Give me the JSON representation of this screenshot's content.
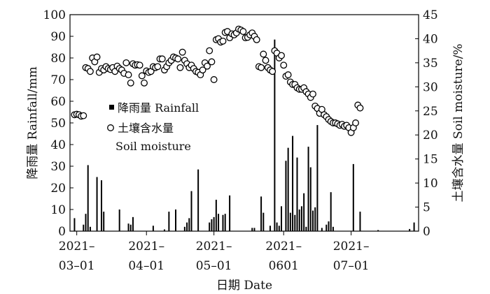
{
  "chart_data": {
    "type": "bar+scatter",
    "x_axis": {
      "label": "日期 Date",
      "ticks": [
        {
          "date": "2021-03-01",
          "label_top": "2021–",
          "label_bottom": "03–01"
        },
        {
          "date": "2021-04-01",
          "label_top": "2021–",
          "label_bottom": "04–01"
        },
        {
          "date": "2021-05-01",
          "label_top": "2021–",
          "label_bottom": "05–01"
        },
        {
          "date": "2021-06-01",
          "label_top": "2021–",
          "label_bottom": "0601"
        },
        {
          "date": "2021-07-01",
          "label_top": "2021–",
          "label_bottom": "07–01"
        }
      ],
      "range": [
        "2021-02-26",
        "2021-07-31"
      ]
    },
    "y_left": {
      "label": "降雨量 Rainfall/mm",
      "range": [
        0,
        100
      ],
      "ticks": [
        0,
        10,
        20,
        30,
        40,
        50,
        60,
        70,
        80,
        90,
        100
      ]
    },
    "y_right": {
      "label": "土壤含水量 Soil moisture/%",
      "range": [
        0,
        45
      ],
      "ticks": [
        0,
        5,
        10,
        15,
        20,
        25,
        30,
        35,
        40,
        45
      ]
    },
    "legend": {
      "placement": "middle-left",
      "entries": [
        {
          "series": "rainfall",
          "marker": "square",
          "text": "降雨量 Rainfall"
        },
        {
          "series": "soil_moisture",
          "marker": "circle",
          "text": "土壤含水量",
          "text2": "Soil moisture"
        }
      ]
    },
    "series": [
      {
        "id": "rainfall",
        "kind": "bar",
        "axis": "left",
        "points": [
          [
            "2021-02-28",
            6
          ],
          [
            "2021-03-04",
            3
          ],
          [
            "2021-03-05",
            8
          ],
          [
            "2021-03-06",
            30.5
          ],
          [
            "2021-03-07",
            2
          ],
          [
            "2021-03-10",
            25
          ],
          [
            "2021-03-12",
            23.5
          ],
          [
            "2021-03-13",
            9
          ],
          [
            "2021-03-20",
            10
          ],
          [
            "2021-03-24",
            3.5
          ],
          [
            "2021-03-25",
            3
          ],
          [
            "2021-03-26",
            6.5
          ],
          [
            "2021-04-04",
            2.5
          ],
          [
            "2021-04-09",
            0.8
          ],
          [
            "2021-04-11",
            9
          ],
          [
            "2021-04-14",
            10
          ],
          [
            "2021-04-18",
            2
          ],
          [
            "2021-04-19",
            4
          ],
          [
            "2021-04-20",
            6
          ],
          [
            "2021-04-21",
            18.5
          ],
          [
            "2021-04-24",
            28.5
          ],
          [
            "2021-04-29",
            4
          ],
          [
            "2021-04-30",
            5.5
          ],
          [
            "2021-05-01",
            6.5
          ],
          [
            "2021-05-02",
            14.5
          ],
          [
            "2021-05-03",
            8
          ],
          [
            "2021-05-05",
            7.5
          ],
          [
            "2021-05-06",
            8
          ],
          [
            "2021-05-08",
            16.5
          ],
          [
            "2021-05-18",
            1.5
          ],
          [
            "2021-05-19",
            1.5
          ],
          [
            "2021-05-22",
            16
          ],
          [
            "2021-05-23",
            8.5
          ],
          [
            "2021-05-26",
            2.5
          ],
          [
            "2021-05-28",
            88.5
          ],
          [
            "2021-05-29",
            4
          ],
          [
            "2021-05-30",
            2.5
          ],
          [
            "2021-05-31",
            11.5
          ],
          [
            "2021-06-02",
            32.5
          ],
          [
            "2021-06-03",
            38.5
          ],
          [
            "2021-06-04",
            8.5
          ],
          [
            "2021-06-05",
            44
          ],
          [
            "2021-06-06",
            7.5
          ],
          [
            "2021-06-07",
            34
          ],
          [
            "2021-06-08",
            10
          ],
          [
            "2021-06-09",
            11.5
          ],
          [
            "2021-06-10",
            17.5
          ],
          [
            "2021-06-11",
            2
          ],
          [
            "2021-06-12",
            39
          ],
          [
            "2021-06-13",
            29.5
          ],
          [
            "2021-06-14",
            9.5
          ],
          [
            "2021-06-15",
            11
          ],
          [
            "2021-06-16",
            49
          ],
          [
            "2021-06-18",
            1.5
          ],
          [
            "2021-06-20",
            3
          ],
          [
            "2021-06-21",
            4.5
          ],
          [
            "2021-06-22",
            18
          ],
          [
            "2021-06-23",
            2
          ],
          [
            "2021-07-02",
            31
          ],
          [
            "2021-07-05",
            9
          ],
          [
            "2021-07-13",
            0.5
          ],
          [
            "2021-07-27",
            1
          ],
          [
            "2021-07-29",
            4
          ]
        ]
      },
      {
        "id": "soil_moisture",
        "kind": "scatter",
        "axis": "right",
        "points": [
          [
            "2021-02-28",
            24.2
          ],
          [
            "2021-03-01",
            24.3
          ],
          [
            "2021-03-02",
            24.2
          ],
          [
            "2021-03-03",
            23.9
          ],
          [
            "2021-03-04",
            24
          ],
          [
            "2021-03-05",
            34
          ],
          [
            "2021-03-06",
            33.8
          ],
          [
            "2021-03-07",
            33.2
          ],
          [
            "2021-03-08",
            36
          ],
          [
            "2021-03-09",
            35.2
          ],
          [
            "2021-03-10",
            36.2
          ],
          [
            "2021-03-11",
            33
          ],
          [
            "2021-03-12",
            33.8
          ],
          [
            "2021-03-13",
            33.5
          ],
          [
            "2021-03-14",
            34.2
          ],
          [
            "2021-03-15",
            33.8
          ],
          [
            "2021-03-16",
            33.6
          ],
          [
            "2021-03-17",
            34
          ],
          [
            "2021-03-18",
            33.2
          ],
          [
            "2021-03-19",
            34.3
          ],
          [
            "2021-03-20",
            33.8
          ],
          [
            "2021-03-21",
            33.5
          ],
          [
            "2021-03-22",
            32.8
          ],
          [
            "2021-03-23",
            35
          ],
          [
            "2021-03-24",
            32.5
          ],
          [
            "2021-03-25",
            30.8
          ],
          [
            "2021-03-26",
            34.8
          ],
          [
            "2021-03-27",
            34.5
          ],
          [
            "2021-03-28",
            34.6
          ],
          [
            "2021-03-29",
            34.5
          ],
          [
            "2021-03-30",
            32.3
          ],
          [
            "2021-03-31",
            30.8
          ],
          [
            "2021-04-01",
            33.3
          ],
          [
            "2021-04-02",
            33
          ],
          [
            "2021-04-03",
            33.2
          ],
          [
            "2021-04-04",
            34.2
          ],
          [
            "2021-04-05",
            34
          ],
          [
            "2021-04-06",
            34.2
          ],
          [
            "2021-04-07",
            35.8
          ],
          [
            "2021-04-08",
            35.8
          ],
          [
            "2021-04-09",
            33.5
          ],
          [
            "2021-04-10",
            34.2
          ],
          [
            "2021-04-11",
            35
          ],
          [
            "2021-04-12",
            35.5
          ],
          [
            "2021-04-13",
            36.2
          ],
          [
            "2021-04-14",
            36
          ],
          [
            "2021-04-15",
            35.8
          ],
          [
            "2021-04-16",
            34
          ],
          [
            "2021-04-17",
            37.2
          ],
          [
            "2021-04-18",
            35.5
          ],
          [
            "2021-04-19",
            34.8
          ],
          [
            "2021-04-20",
            34
          ],
          [
            "2021-04-21",
            34.5
          ],
          [
            "2021-04-22",
            33.8
          ],
          [
            "2021-04-23",
            33.2
          ],
          [
            "2021-04-24",
            33
          ],
          [
            "2021-04-25",
            32.5
          ],
          [
            "2021-04-26",
            33.5
          ],
          [
            "2021-04-27",
            35
          ],
          [
            "2021-04-28",
            34.3
          ],
          [
            "2021-04-29",
            37.5
          ],
          [
            "2021-04-30",
            35.2
          ],
          [
            "2021-05-01",
            31.5
          ],
          [
            "2021-05-02",
            39.8
          ],
          [
            "2021-05-03",
            40
          ],
          [
            "2021-05-04",
            39.3
          ],
          [
            "2021-05-05",
            39.5
          ],
          [
            "2021-05-06",
            41.3
          ],
          [
            "2021-05-07",
            41.5
          ],
          [
            "2021-05-08",
            40.2
          ],
          [
            "2021-05-09",
            41
          ],
          [
            "2021-05-10",
            40.8
          ],
          [
            "2021-05-11",
            41.2
          ],
          [
            "2021-05-12",
            42
          ],
          [
            "2021-05-13",
            41.8
          ],
          [
            "2021-05-14",
            41.5
          ],
          [
            "2021-05-15",
            40.2
          ],
          [
            "2021-05-16",
            40.3
          ],
          [
            "2021-05-17",
            40.8
          ],
          [
            "2021-05-18",
            41.2
          ],
          [
            "2021-05-19",
            40.5
          ],
          [
            "2021-05-20",
            39.8
          ],
          [
            "2021-05-21",
            34.2
          ],
          [
            "2021-05-22",
            34
          ],
          [
            "2021-05-23",
            36.8
          ],
          [
            "2021-05-24",
            35.5
          ],
          [
            "2021-05-25",
            34
          ],
          [
            "2021-05-26",
            33.5
          ],
          [
            "2021-05-27",
            33.2
          ],
          [
            "2021-05-28",
            37.5
          ],
          [
            "2021-05-29",
            37
          ],
          [
            "2021-05-30",
            36
          ],
          [
            "2021-05-31",
            36.5
          ],
          [
            "2021-06-01",
            34.5
          ],
          [
            "2021-06-02",
            32.2
          ],
          [
            "2021-06-03",
            32.5
          ],
          [
            "2021-06-04",
            31
          ],
          [
            "2021-06-05",
            30.5
          ],
          [
            "2021-06-06",
            30.5
          ],
          [
            "2021-06-07",
            29.8
          ],
          [
            "2021-06-08",
            29.5
          ],
          [
            "2021-06-09",
            29.5
          ],
          [
            "2021-06-10",
            29.8
          ],
          [
            "2021-06-11",
            29
          ],
          [
            "2021-06-12",
            28.5
          ],
          [
            "2021-06-13",
            27.8
          ],
          [
            "2021-06-14",
            28.5
          ],
          [
            "2021-06-15",
            26
          ],
          [
            "2021-06-16",
            25.5
          ],
          [
            "2021-06-17",
            24.5
          ],
          [
            "2021-06-18",
            25.3
          ],
          [
            "2021-06-19",
            24.2
          ],
          [
            "2021-06-20",
            23.8
          ],
          [
            "2021-06-21",
            23.2
          ],
          [
            "2021-06-22",
            22.8
          ],
          [
            "2021-06-23",
            22.5
          ],
          [
            "2021-06-24",
            22.5
          ],
          [
            "2021-06-25",
            22.3
          ],
          [
            "2021-06-26",
            22
          ],
          [
            "2021-06-27",
            22.2
          ],
          [
            "2021-06-28",
            21.8
          ],
          [
            "2021-06-29",
            22
          ],
          [
            "2021-06-30",
            21.5
          ],
          [
            "2021-07-01",
            20.5
          ],
          [
            "2021-07-02",
            21.5
          ],
          [
            "2021-07-03",
            22.5
          ],
          [
            "2021-07-04",
            26.2
          ],
          [
            "2021-07-05",
            25.6
          ]
        ]
      }
    ]
  }
}
